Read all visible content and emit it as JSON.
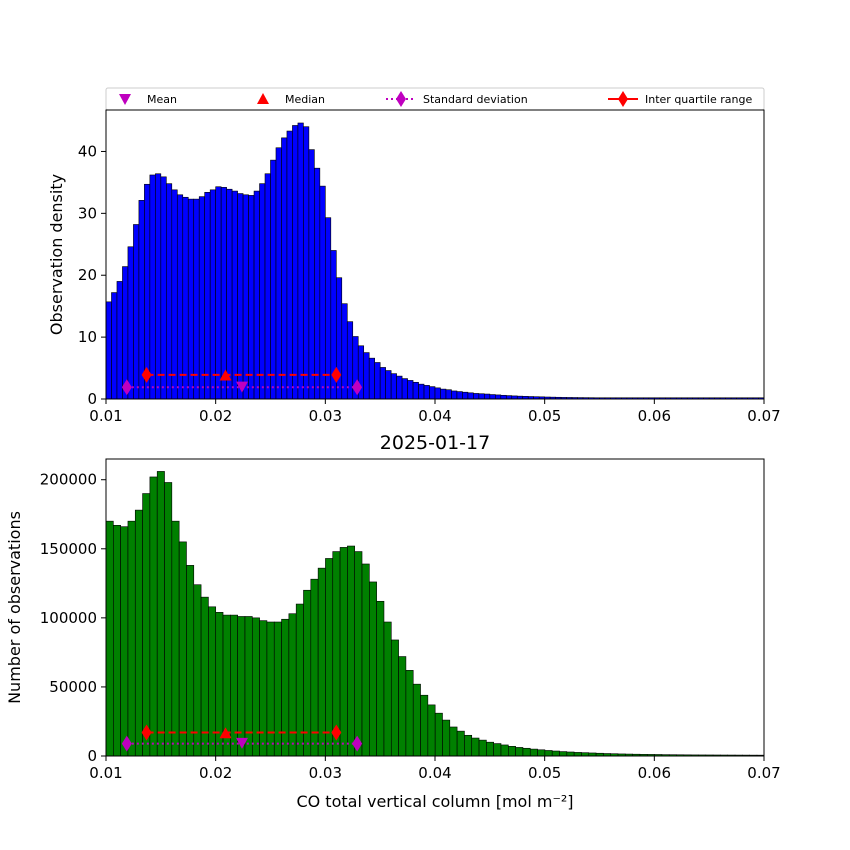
{
  "legend": {
    "items": [
      {
        "label": "Mean",
        "marker": "triangle-down",
        "color": "#bf00bf",
        "line": "none"
      },
      {
        "label": "Median",
        "marker": "triangle-up",
        "color": "#ff0000",
        "line": "none"
      },
      {
        "label": "Standard deviation",
        "marker": "diamond",
        "color": "#bf00bf",
        "line": "dotted"
      },
      {
        "label": "Inter quartile range",
        "marker": "diamond",
        "color": "#ff0000",
        "line": "solid"
      }
    ]
  },
  "chart_data": [
    {
      "type": "bar",
      "title": "",
      "xlabel": "",
      "ylabel": "Observation density",
      "xlim": [
        0.01,
        0.07
      ],
      "ylim": [
        0,
        46.7
      ],
      "xticks": [
        "0.01",
        "0.02",
        "0.03",
        "0.04",
        "0.05",
        "0.06",
        "0.07"
      ],
      "xtick_values": [
        0.01,
        0.02,
        0.03,
        0.04,
        0.05,
        0.06,
        0.07
      ],
      "yticks": [
        "0",
        "10",
        "20",
        "30",
        "40"
      ],
      "ytick_values": [
        0,
        10,
        20,
        30,
        40
      ],
      "bar_color": "#0000ff",
      "bin_start": 0.01,
      "bin_width": 0.0005,
      "values": [
        15.7,
        17.2,
        19.0,
        21.4,
        24.6,
        28.2,
        32.1,
        34.7,
        36.2,
        36.4,
        35.9,
        34.8,
        33.8,
        33.0,
        32.6,
        32.3,
        32.3,
        32.7,
        33.4,
        33.8,
        34.3,
        34.2,
        33.9,
        33.6,
        33.2,
        33.0,
        32.9,
        33.6,
        34.8,
        36.4,
        38.6,
        40.6,
        42.2,
        43.3,
        44.2,
        44.6,
        44.0,
        40.3,
        37.3,
        34.4,
        29.3,
        24.0,
        19.6,
        15.4,
        12.5,
        10.1,
        8.6,
        7.5,
        6.6,
        5.9,
        5.1,
        4.6,
        4.1,
        3.7,
        3.3,
        3.0,
        2.7,
        2.4,
        2.2,
        2.0,
        1.8,
        1.6,
        1.5,
        1.3,
        1.2,
        1.1,
        1.0,
        0.9,
        0.85,
        0.8,
        0.72,
        0.66,
        0.6,
        0.55,
        0.5,
        0.46,
        0.43,
        0.4,
        0.37,
        0.35,
        0.32,
        0.3,
        0.28,
        0.26,
        0.25,
        0.24,
        0.23,
        0.22,
        0.21,
        0.2,
        0.2,
        0.2,
        0.2,
        0.2,
        0.2,
        0.2,
        0.2,
        0.2,
        0.2,
        0.2,
        0.2,
        0.2,
        0.2,
        0.2,
        0.2,
        0.2,
        0.2,
        0.2,
        0.2,
        0.2,
        0.2,
        0.2,
        0.2,
        0.2,
        0.2,
        0.2,
        0.2,
        0.2,
        0.2,
        0.2
      ],
      "markers": {
        "mean": {
          "x": 0.0224,
          "y": 2.0
        },
        "median": {
          "x": 0.0209,
          "y": 3.8
        },
        "std_range": [
          0.0119,
          0.0329
        ],
        "std_y": 1.9,
        "iqr_range": [
          0.0137,
          0.031
        ],
        "iqr_y": 3.9
      }
    },
    {
      "type": "bar",
      "title": "2025-01-17",
      "xlabel": "CO total vertical column [mol m⁻²]",
      "ylabel": "Number of observations",
      "xlim": [
        0.01,
        0.07
      ],
      "ylim": [
        0,
        215000
      ],
      "xticks": [
        "0.01",
        "0.02",
        "0.03",
        "0.04",
        "0.05",
        "0.06",
        "0.07"
      ],
      "xtick_values": [
        0.01,
        0.02,
        0.03,
        0.04,
        0.05,
        0.06,
        0.07
      ],
      "yticks": [
        "0",
        "50000",
        "100000",
        "150000",
        "200000"
      ],
      "ytick_values": [
        0,
        50000,
        100000,
        150000,
        200000
      ],
      "bar_color": "#008000",
      "bin_start": 0.01,
      "bin_width": 0.000667,
      "values": [
        170000,
        167000,
        166000,
        170000,
        178000,
        190000,
        202000,
        206000,
        198000,
        170000,
        155000,
        138000,
        124000,
        115000,
        108000,
        104000,
        102000,
        102000,
        101000,
        101000,
        100000,
        98000,
        97000,
        97000,
        99000,
        103000,
        110000,
        120000,
        128000,
        136000,
        143000,
        148000,
        151000,
        152000,
        148000,
        139000,
        126000,
        112000,
        97000,
        84000,
        72000,
        62000,
        52000,
        44000,
        37000,
        31000,
        26000,
        21000,
        18000,
        15000,
        13000,
        11500,
        10000,
        9000,
        8000,
        7000,
        6200,
        5600,
        5000,
        4500,
        4000,
        3600,
        3200,
        2900,
        2600,
        2400,
        2200,
        2000,
        1800,
        1650,
        1500,
        1400,
        1300,
        1200,
        1150,
        1100,
        1000,
        950,
        900,
        850,
        800,
        780,
        760,
        740,
        720,
        700,
        680,
        660,
        640,
        620
      ],
      "markers": {
        "mean": {
          "x": 0.0224,
          "y": 9500
        },
        "median": {
          "x": 0.0209,
          "y": 16500
        },
        "std_range": [
          0.0119,
          0.0329
        ],
        "std_y": 9000,
        "iqr_range": [
          0.0137,
          0.031
        ],
        "iqr_y": 17000
      }
    }
  ]
}
